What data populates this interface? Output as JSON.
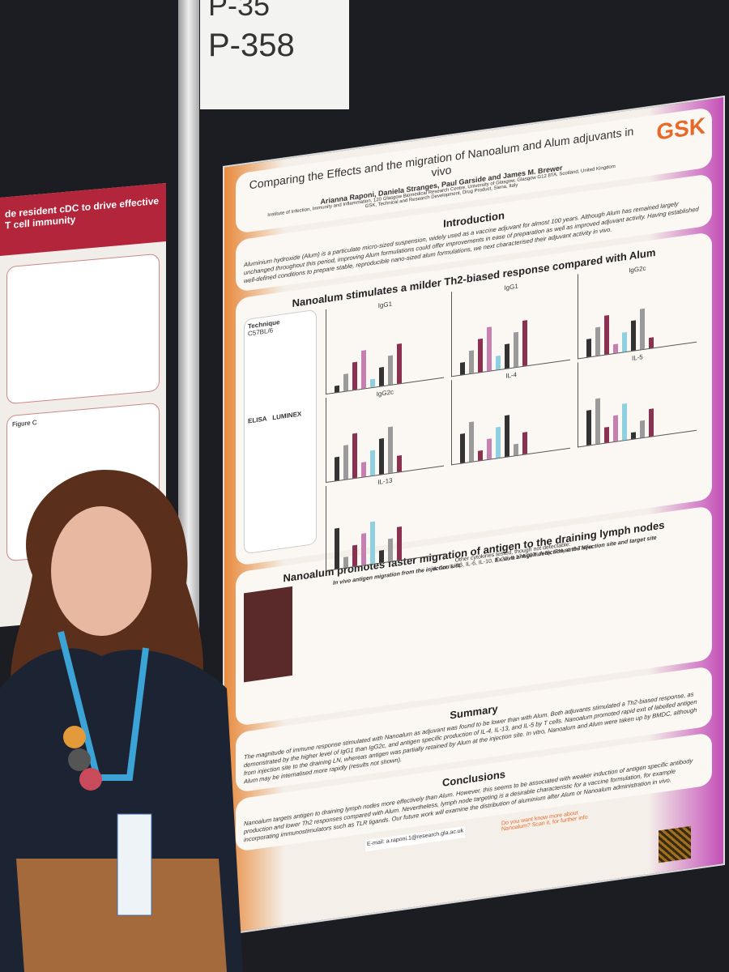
{
  "sign": {
    "top": "P-35",
    "label": "P-358"
  },
  "left_poster": {
    "title": "de resident cDC to drive effective T cell immunity",
    "figure": "Figure C"
  },
  "poster": {
    "logo": "GSK",
    "title": "Comparing the Effects and the migration of Nanoalum and Alum adjuvants in vivo",
    "authors": "Arianna Raponi, Daniela Stranges, Paul Garside and James M. Brewer",
    "affiliation": "Institute of Infection, Immunity and Inflammation, 120 Glasgow Biomedical Research Centre, University of Glasgow, Glasgow G12 8TA, Scotland, United Kingdom",
    "affiliation2": "GSK, Technical and Research Development, Drug Product, Siena, Italy",
    "introduction": {
      "heading": "Introduction",
      "text": "Aluminium hydroxide (Alum) is a particulate micro-sized suspension, widely used as a vaccine adjuvant for almost 100 years. Although Alum has remained largely unchanged throughout this period, improving Alum formulations could offer improvements in ease of preparation as well as improved adjuvant activity. Having established well-defined conditions to prepare stable, reproducible nano-sized alum formulations, we next characterised their adjuvant activity in vivo."
    },
    "panel1": {
      "heading": "Nanoalum stimulates a milder Th2-biased response compared with Alum",
      "technique": "Technique",
      "mouse": "C57BL/6",
      "elisa": "ELISA",
      "luminex": "LUMINEX",
      "charts": [
        "IgG1",
        "IgG1",
        "IgG2c",
        "IgG2c",
        "IL-4",
        "IL-5",
        "IL-13"
      ],
      "note": "Other cytokines tested, though not detectable:",
      "note2": "IL-1α, IL-1β, IL-6, IL-10, IL-21, IL17A (CTLA-8), IFNγ and TNFα"
    },
    "panel2": {
      "heading": "Nanoalum promotes faster migration of antigen to the draining lymph nodes",
      "left": "In vivo antigen migration from the injection site",
      "right": "Ex vivo antigen detection at the injection site and target site"
    },
    "summary": {
      "heading": "Summary",
      "text": "The magnitude of immune response stimulated with Nanoalum as adjuvant was found to be lower than with Alum. Both adjuvants stimulated a Th2-biased response, as demonstrated by the higher level of IgG1 than IgG2c, and antigen specific production of IL-4, IL-13, and IL-5 by T cells. Nanoalum promoted rapid exit of labelled antigen from injection site to the draining LN, whereas antigen was partially retained by Alum at the injection site. In vitro, Nanoalum and Alum were taken up by BMDC, although Alum may be internalised more rapidly (results not shown)."
    },
    "conclusions": {
      "heading": "Conclusions",
      "text": "Nanoalum targets antigen to draining lymph nodes more effectively than Alum. However, this seems to be associated with weaker induction of antigen specific antibody production and lower Th2 responses compared with Alum. Nevertheless, lymph node targeting is a desirable characteristic for a vaccine formulation, for example incorporating immunostimulators such as TLR ligands. Our future work will examine the distribution of aluminium after Alum or Nanoalum administration in vivo."
    },
    "email": "E-mail: a.raponi.1@research.gla.ac.uk",
    "qr_text": "Do you want know more about Nanoalum? Scan it, for further info"
  }
}
